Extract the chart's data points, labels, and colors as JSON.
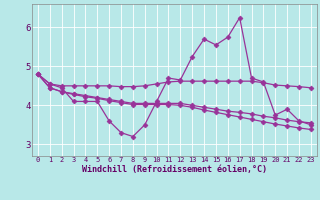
{
  "bg_color": "#b8e8e8",
  "line_color": "#993399",
  "xlabel": "Windchill (Refroidissement éolien,°C)",
  "xlim": [
    -0.5,
    23.5
  ],
  "ylim": [
    2.7,
    6.6
  ],
  "yticks": [
    3,
    4,
    5,
    6
  ],
  "xticks": [
    0,
    1,
    2,
    3,
    4,
    5,
    6,
    7,
    8,
    9,
    10,
    11,
    12,
    13,
    14,
    15,
    16,
    17,
    18,
    19,
    20,
    21,
    22,
    23
  ],
  "series": {
    "line1": [
      4.8,
      4.55,
      4.45,
      4.1,
      4.1,
      4.1,
      3.6,
      3.3,
      3.2,
      3.5,
      4.1,
      4.7,
      4.65,
      5.25,
      5.7,
      5.55,
      5.75,
      6.25,
      4.7,
      4.6,
      3.75,
      3.9,
      3.6,
      3.5
    ],
    "line2": [
      4.8,
      4.55,
      4.5,
      4.5,
      4.5,
      4.5,
      4.5,
      4.48,
      4.48,
      4.5,
      4.55,
      4.6,
      4.62,
      4.62,
      4.62,
      4.62,
      4.62,
      4.62,
      4.62,
      4.58,
      4.52,
      4.5,
      4.48,
      4.45
    ],
    "line3": [
      4.8,
      4.45,
      4.35,
      4.3,
      4.25,
      4.2,
      4.15,
      4.1,
      4.05,
      4.05,
      4.05,
      4.05,
      4.05,
      4.0,
      3.95,
      3.9,
      3.85,
      3.82,
      3.78,
      3.72,
      3.68,
      3.62,
      3.58,
      3.55
    ],
    "line4": [
      4.8,
      4.45,
      4.35,
      4.28,
      4.22,
      4.18,
      4.12,
      4.07,
      4.02,
      4.02,
      4.02,
      4.02,
      4.0,
      3.95,
      3.88,
      3.82,
      3.76,
      3.7,
      3.64,
      3.58,
      3.52,
      3.47,
      3.42,
      3.38
    ]
  },
  "marker": "D",
  "markersize": 2.5,
  "linewidth": 0.9
}
